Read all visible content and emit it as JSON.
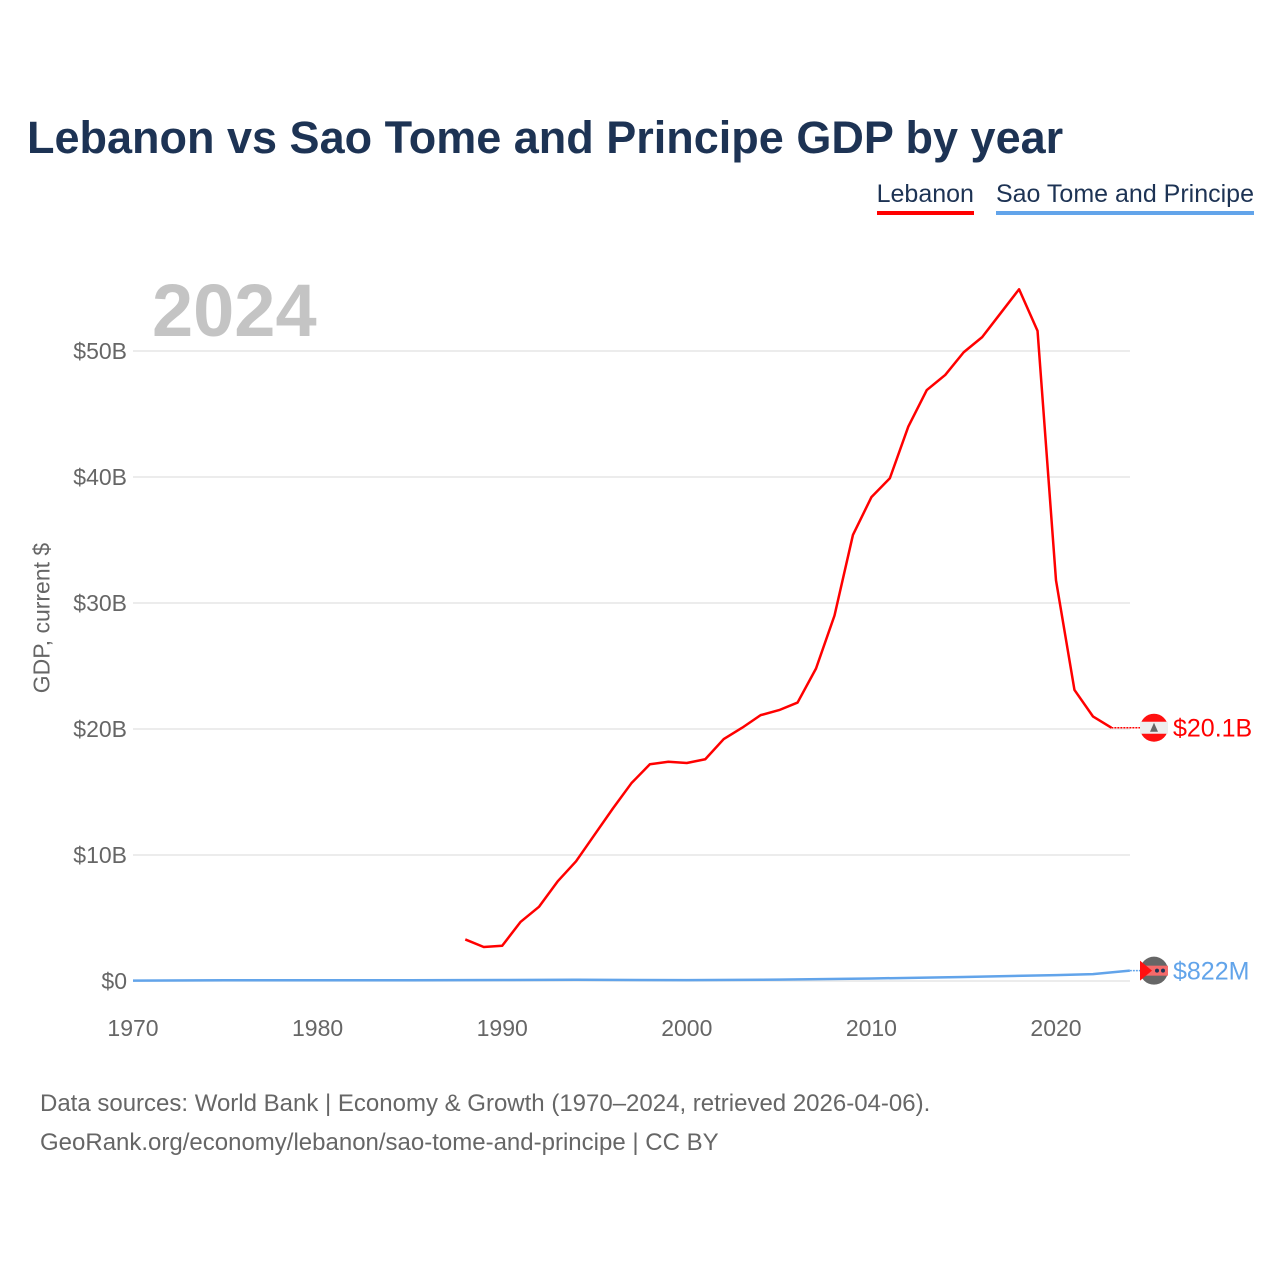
{
  "title": "Lebanon vs Sao Tome and Principe GDP by year",
  "year_label": "2024",
  "source_line1": "Data sources: World Bank | Economy & Growth (1970–2024, retrieved 2026-04-06).",
  "source_line2": "GeoRank.org/economy/lebanon/sao-tome-and-principe | CC BY",
  "chart_data": {
    "type": "line",
    "title": "Lebanon vs Sao Tome and Principe GDP by year",
    "xlabel": "",
    "ylabel": "GDP, current $",
    "xlim": [
      1970,
      2024
    ],
    "ylim": [
      0,
      55
    ],
    "y_unit": "billion USD",
    "x_ticks": [
      1970,
      1980,
      1990,
      2000,
      2010,
      2020
    ],
    "x_tick_labels": [
      "1970",
      "1980",
      "1990",
      "2000",
      "2010",
      "2020"
    ],
    "y_ticks": [
      0,
      10,
      20,
      30,
      40,
      50
    ],
    "y_tick_labels": [
      "$0",
      "$10B",
      "$20B",
      "$30B",
      "$40B",
      "$50B"
    ],
    "grid": true,
    "legend_position": "top-right",
    "series": [
      {
        "name": "Lebanon",
        "color": "#ff0000",
        "end_label": "$20.1B",
        "flag": "lebanon-flag",
        "x": [
          1988,
          1989,
          1990,
          1991,
          1992,
          1993,
          1994,
          1995,
          1996,
          1997,
          1998,
          1999,
          2000,
          2001,
          2002,
          2003,
          2004,
          2005,
          2006,
          2007,
          2008,
          2009,
          2010,
          2011,
          2012,
          2013,
          2014,
          2015,
          2016,
          2017,
          2018,
          2019,
          2020,
          2021,
          2022,
          2023
        ],
        "values": [
          3.3,
          2.7,
          2.8,
          4.7,
          5.9,
          7.9,
          9.5,
          11.6,
          13.7,
          15.7,
          17.2,
          17.4,
          17.3,
          17.6,
          19.2,
          20.1,
          21.1,
          21.5,
          22.1,
          24.8,
          29.0,
          35.4,
          38.4,
          39.9,
          44.0,
          46.9,
          48.1,
          49.9,
          51.1,
          53.0,
          54.9,
          51.6,
          31.8,
          23.1,
          21.0,
          20.1
        ]
      },
      {
        "name": "Sao Tome and Principe",
        "color": "#62a4ea",
        "end_label": "$822M",
        "flag": "sao-tome-flag",
        "x": [
          1970,
          1975,
          1980,
          1985,
          1990,
          1994,
          2000,
          2005,
          2010,
          2015,
          2020,
          2022,
          2024
        ],
        "values": [
          0.03,
          0.06,
          0.06,
          0.06,
          0.08,
          0.1,
          0.07,
          0.11,
          0.2,
          0.32,
          0.47,
          0.55,
          0.82
        ]
      }
    ]
  }
}
